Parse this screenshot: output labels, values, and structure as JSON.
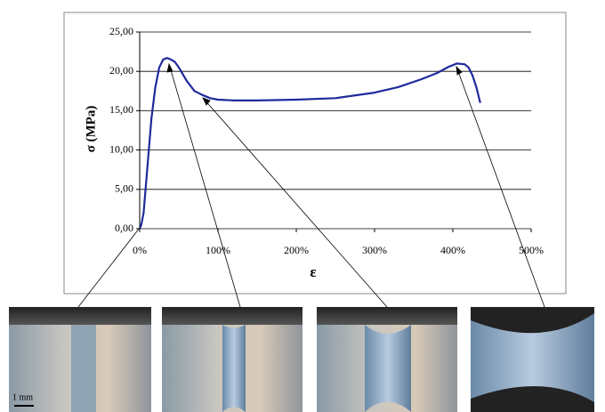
{
  "chart_data": {
    "type": "line",
    "x_label": "ε",
    "y_label": "σ (MPa)",
    "x": [
      0,
      2,
      5,
      10,
      15,
      20,
      25,
      30,
      35,
      40,
      45,
      50,
      60,
      70,
      80,
      90,
      100,
      120,
      150,
      200,
      250,
      300,
      330,
      360,
      380,
      395,
      405,
      415,
      420,
      425,
      430,
      435
    ],
    "series": [
      {
        "color": "#1f2a9c",
        "values": [
          0,
          0.5,
          2,
          8,
          14,
          18,
          20.5,
          21.5,
          21.7,
          21.5,
          21.2,
          20.5,
          18.8,
          17.5,
          17,
          16.6,
          16.4,
          16.3,
          16.3,
          16.4,
          16.6,
          17.3,
          18,
          19,
          19.8,
          20.6,
          21,
          20.9,
          20.5,
          19.5,
          18,
          16
        ]
      }
    ],
    "xlim": [
      0,
      500
    ],
    "ylim": [
      0,
      25
    ],
    "xticks": [
      {
        "value": 0,
        "label": "0%"
      },
      {
        "value": 100,
        "label": "100%"
      },
      {
        "value": 200,
        "label": "200%"
      },
      {
        "value": 300,
        "label": "300%"
      },
      {
        "value": 400,
        "label": "400%"
      },
      {
        "value": 500,
        "label": "500%"
      }
    ],
    "yticks": [
      {
        "value": 0,
        "label": "0,00"
      },
      {
        "value": 5,
        "label": "5,00"
      },
      {
        "value": 10,
        "label": "10,00"
      },
      {
        "value": 15,
        "label": "15,00"
      },
      {
        "value": 20,
        "label": "20,00"
      },
      {
        "value": 25,
        "label": "25,00"
      }
    ],
    "grid": true,
    "annotations": [
      "1 mm"
    ]
  }
}
